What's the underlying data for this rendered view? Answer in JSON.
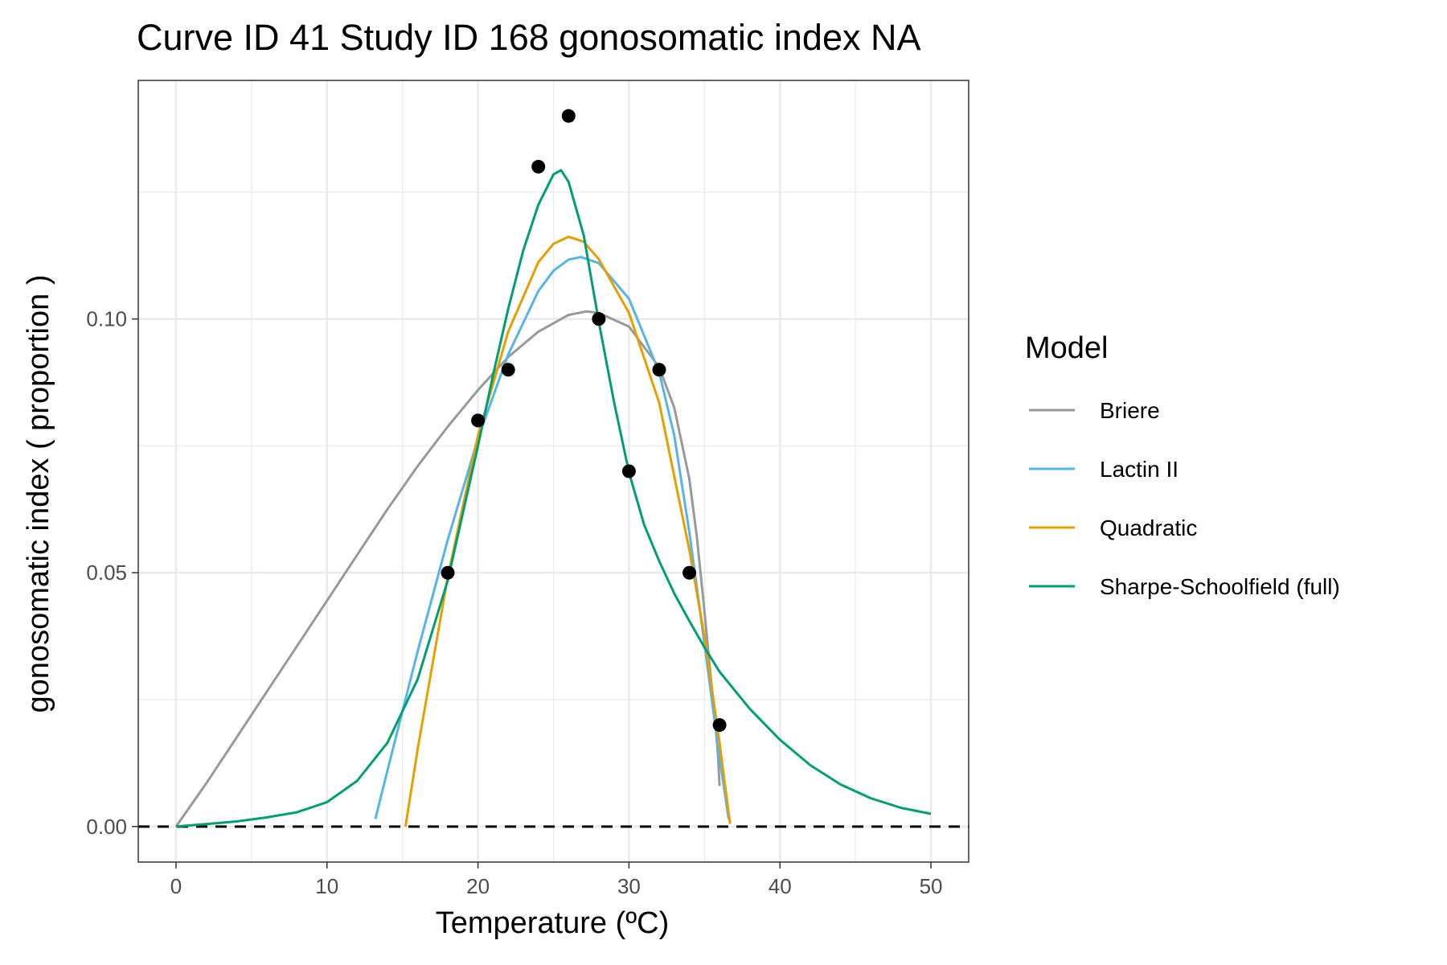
{
  "chart_data": {
    "type": "line",
    "title": "Curve ID 41 Study ID 168 gonosomatic index NA",
    "xlabel": "Temperature (ºC)",
    "ylabel": "gonosomatic index ( proportion )",
    "xlim": [
      -2.5,
      52.5
    ],
    "ylim": [
      -0.007,
      0.147
    ],
    "x_ticks": [
      0,
      10,
      20,
      30,
      40,
      50
    ],
    "x_tick_labels": [
      "0",
      "10",
      "20",
      "30",
      "40",
      "50"
    ],
    "y_ticks": [
      0,
      0.05,
      0.1
    ],
    "y_tick_labels": [
      "0.00",
      "0.05",
      "0.10"
    ],
    "grid": true,
    "reference_line": {
      "y": 0,
      "style": "dashed",
      "color": "#000000"
    },
    "legend": {
      "title": "Model",
      "position": "right"
    },
    "points": {
      "color": "#000000",
      "x": [
        18,
        20,
        22,
        24,
        26,
        28,
        30,
        32,
        34,
        36
      ],
      "y": [
        0.05,
        0.08,
        0.09,
        0.13,
        0.14,
        0.1,
        0.07,
        0.09,
        0.05,
        0.02
      ]
    },
    "series": [
      {
        "name": "Briere",
        "color": "#999999",
        "x": [
          0,
          2,
          4,
          6,
          8,
          10,
          12,
          14,
          16,
          18,
          20,
          22,
          24,
          26,
          27.2,
          28,
          30,
          32,
          33,
          34,
          34.5,
          35,
          35.4,
          35.7,
          35.9,
          36
        ],
        "y": [
          0,
          0.0085,
          0.0175,
          0.0265,
          0.0355,
          0.0445,
          0.0535,
          0.0625,
          0.071,
          0.0788,
          0.086,
          0.0925,
          0.0975,
          0.1008,
          0.1015,
          0.1012,
          0.0985,
          0.0905,
          0.0825,
          0.0685,
          0.057,
          0.0425,
          0.03,
          0.021,
          0.014,
          0.008
        ]
      },
      {
        "name": "Lactin II",
        "color": "#56B4E9",
        "x": [
          13.2,
          14,
          16,
          18,
          20,
          22,
          24,
          25,
          26,
          26.8,
          28,
          30,
          32,
          33,
          34,
          35,
          36,
          36.6
        ],
        "y": [
          0.0015,
          0.011,
          0.0345,
          0.0565,
          0.0765,
          0.093,
          0.1055,
          0.1095,
          0.1117,
          0.1122,
          0.111,
          0.104,
          0.0895,
          0.077,
          0.058,
          0.036,
          0.0135,
          0.0015
        ]
      },
      {
        "name": "Quadratic",
        "color": "#E69F00",
        "x": [
          15.2,
          16,
          18,
          20,
          22,
          24,
          25,
          26,
          27,
          28,
          30,
          32,
          34,
          35,
          36,
          36.7
        ],
        "y": [
          0,
          0.0152,
          0.0492,
          0.077,
          0.0975,
          0.1112,
          0.1148,
          0.1162,
          0.1152,
          0.1118,
          0.1012,
          0.0835,
          0.0545,
          0.0375,
          0.0165,
          0.0005
        ]
      },
      {
        "name": "Sharpe-Schoolfield (full)",
        "color": "#009E73",
        "x": [
          0,
          2,
          4,
          6,
          8,
          10,
          12,
          14,
          16,
          18,
          20,
          21,
          22,
          23,
          24,
          25,
          25.5,
          26,
          27,
          28,
          29,
          30,
          31,
          32,
          33,
          34,
          35,
          36,
          38,
          40,
          42,
          44,
          46,
          48,
          50
        ],
        "y": [
          0,
          0.0005,
          0.001,
          0.0018,
          0.0028,
          0.0048,
          0.009,
          0.0165,
          0.029,
          0.0485,
          0.075,
          0.089,
          0.102,
          0.1135,
          0.1225,
          0.1285,
          0.1293,
          0.127,
          0.1165,
          0.0995,
          0.0838,
          0.0698,
          0.0595,
          0.0523,
          0.0459,
          0.0405,
          0.0353,
          0.0305,
          0.0232,
          0.0171,
          0.0121,
          0.0083,
          0.0056,
          0.0037,
          0.0025
        ]
      }
    ]
  }
}
